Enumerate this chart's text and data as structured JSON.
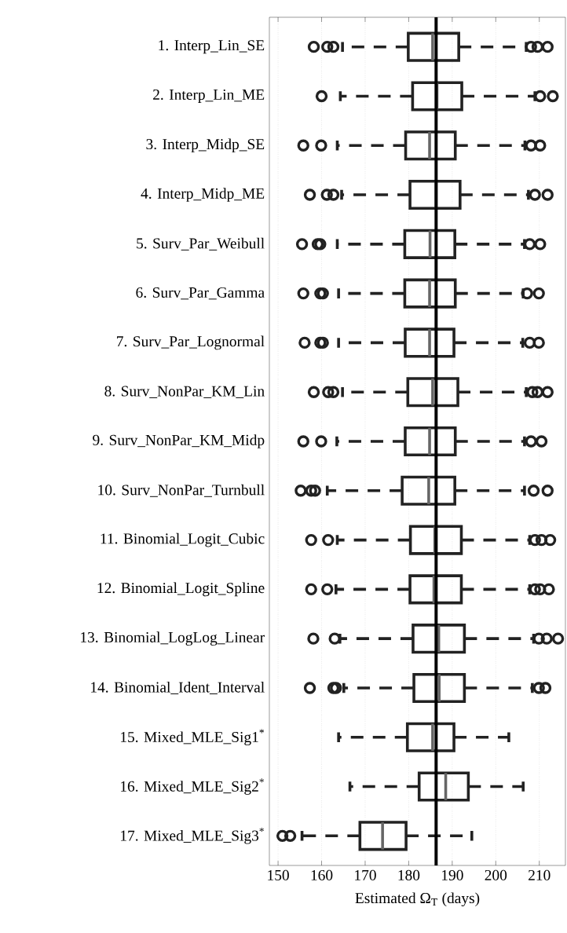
{
  "chart_data": {
    "type": "box",
    "orientation": "horizontal",
    "categories": [
      "1. Interp_Lin_SE",
      "2. Interp_Lin_ME",
      "3. Interp_Midp_SE",
      "4. Interp_Midp_ME",
      "5. Surv_Par_Weibull",
      "6. Surv_Par_Gamma",
      "7. Surv_Par_Lognormal",
      "8. Surv_NonPar_KM_Lin",
      "9. Surv_NonPar_KM_Midp",
      "10. Surv_NonPar_Turnbull",
      "11. Binomial_Logit_Cubic",
      "12. Binomial_Logit_Spline",
      "13. Binomial_LogLog_Linear",
      "14. Binomial_Ident_Interval",
      "15. Mixed_MLE_Sig1$^{*}$",
      "16. Mixed_MLE_Sig2$^{*}$",
      "17. Mixed_MLE_Sig3$^{*}$"
    ],
    "boxes": [
      {
        "low": 164.8,
        "q1": 179.9,
        "median": 185.5,
        "q3": 191.5,
        "high": 207.0,
        "outliers": [
          158.2,
          161.3,
          162.7,
          208.1,
          209.6,
          211.9
        ]
      },
      {
        "low": 164.3,
        "q1": 180.9,
        "median": 186.5,
        "q3": 192.2,
        "high": 209.0,
        "outliers": [
          160.0,
          210.2,
          213.1
        ]
      },
      {
        "low": 163.6,
        "q1": 179.3,
        "median": 184.8,
        "q3": 190.7,
        "high": 206.7,
        "outliers": [
          155.8,
          159.9,
          208.1,
          210.2
        ]
      },
      {
        "low": 164.6,
        "q1": 180.3,
        "median": 186.3,
        "q3": 191.8,
        "high": 207.5,
        "outliers": [
          157.3,
          161.2,
          162.7,
          209.0,
          211.9
        ]
      },
      {
        "low": 163.6,
        "q1": 179.1,
        "median": 184.9,
        "q3": 190.6,
        "high": 206.6,
        "outliers": [
          155.5,
          159.1,
          159.7,
          207.8,
          210.2
        ]
      },
      {
        "low": 163.9,
        "q1": 179.1,
        "median": 184.8,
        "q3": 190.7,
        "high": 206.3,
        "outliers": [
          155.8,
          159.7,
          160.3,
          207.2,
          209.9
        ]
      },
      {
        "low": 163.9,
        "q1": 179.2,
        "median": 184.8,
        "q3": 190.4,
        "high": 206.2,
        "outliers": [
          156.1,
          159.7,
          160.3,
          207.8,
          209.9
        ]
      },
      {
        "low": 164.8,
        "q1": 179.8,
        "median": 185.5,
        "q3": 191.3,
        "high": 207.0,
        "outliers": [
          158.2,
          161.5,
          162.7,
          208.4,
          209.6,
          211.9
        ]
      },
      {
        "low": 163.5,
        "q1": 179.2,
        "median": 184.8,
        "q3": 190.7,
        "high": 206.6,
        "outliers": [
          155.8,
          159.9,
          208.1,
          210.5
        ]
      },
      {
        "low": 161.3,
        "q1": 178.5,
        "median": 184.6,
        "q3": 190.6,
        "high": 206.6,
        "outliers": [
          155.2,
          157.6,
          158.5,
          208.7,
          211.9
        ]
      },
      {
        "low": 163.6,
        "q1": 180.4,
        "median": 186.0,
        "q3": 192.1,
        "high": 207.8,
        "outliers": [
          157.6,
          161.5,
          209.0,
          210.5,
          212.5
        ]
      },
      {
        "low": 163.3,
        "q1": 180.3,
        "median": 185.8,
        "q3": 192.1,
        "high": 207.8,
        "outliers": [
          157.6,
          161.3,
          209.0,
          210.2,
          212.2
        ]
      },
      {
        "low": 164.2,
        "q1": 181.0,
        "median": 186.9,
        "q3": 192.8,
        "high": 208.7,
        "outliers": [
          158.1,
          163.0,
          209.9,
          211.7,
          214.3
        ]
      },
      {
        "low": 165.1,
        "q1": 181.2,
        "median": 187.0,
        "q3": 192.8,
        "high": 208.4,
        "outliers": [
          157.3,
          162.7,
          163.3,
          209.9,
          211.4
        ]
      },
      {
        "low": 163.9,
        "q1": 179.7,
        "median": 185.5,
        "q3": 190.4,
        "high": 203.0
      },
      {
        "low": 166.5,
        "q1": 182.4,
        "median": 188.5,
        "q3": 193.7,
        "high": 206.3
      },
      {
        "low": 155.5,
        "q1": 168.8,
        "median": 174.0,
        "q3": 179.4,
        "high": 194.5,
        "outliers": [
          151.0,
          152.8
        ]
      }
    ],
    "color": "#222222",
    "xlim": [
      148,
      216
    ],
    "xticks": [
      150,
      160,
      170,
      180,
      190,
      200,
      210
    ],
    "xlabel": "Estimated Ω$_{T}$ (days)",
    "ref_lines": [
      {
        "axis": "x",
        "value": 186.3,
        "color": "#000000"
      }
    ],
    "grid": "x",
    "marker": "circle"
  }
}
